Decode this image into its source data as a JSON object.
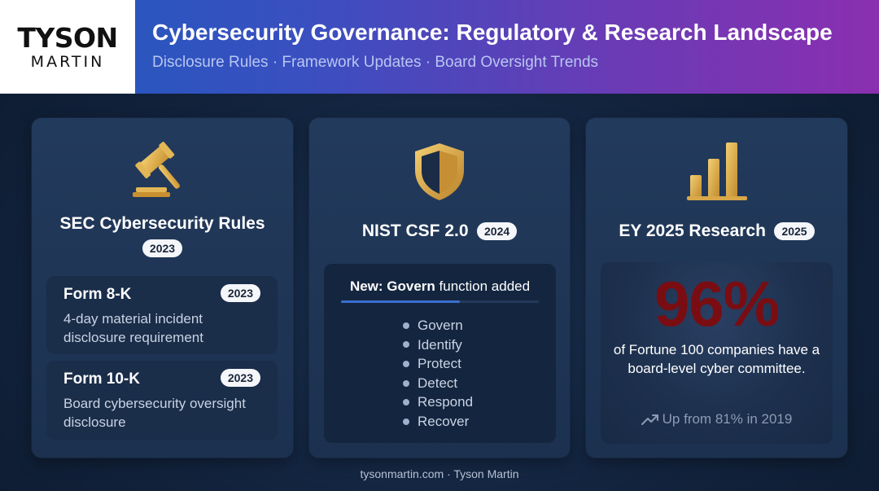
{
  "header": {
    "logo": {
      "line1": "TYSON",
      "line2": "MARTIN"
    },
    "title": "Cybersecurity Governance: Regulatory & Research Landscape",
    "subtitle": "Disclosure Rules · Framework Updates · Board Oversight Trends"
  },
  "panels": {
    "sec": {
      "icon": "gavel-icon",
      "title": "SEC Cybersecurity Rules",
      "year": "2023",
      "forms": [
        {
          "title": "Form 8-K",
          "year": "2023",
          "description": "4-day material incident disclosure requirement"
        },
        {
          "title": "Form 10-K",
          "year": "2023",
          "description": "Board cybersecurity oversight disclosure"
        }
      ]
    },
    "nist": {
      "icon": "shield-icon",
      "title": "NIST CSF 2.0",
      "year": "2024",
      "highlight_bold": "New: Govern",
      "highlight_rest": " function added",
      "functions": [
        "Govern",
        "Identify",
        "Protect",
        "Detect",
        "Respond",
        "Recover"
      ]
    },
    "ey": {
      "icon": "bar-chart-icon",
      "title": "EY 2025 Research",
      "year": "2025",
      "stat": "96%",
      "stat_description": "of Fortune 100 companies have a board-level cyber committee.",
      "trend_icon": "trend-up-icon",
      "trend_text": "Up from 81% in 2019"
    }
  },
  "footer": "tysonmartin.com · Tyson Martin",
  "colors": {
    "accent_gold": "#e0b24a",
    "stat_red": "#7a0d12",
    "header_gradient_start": "#1f5bbd",
    "header_gradient_end": "#8a2fb0"
  }
}
